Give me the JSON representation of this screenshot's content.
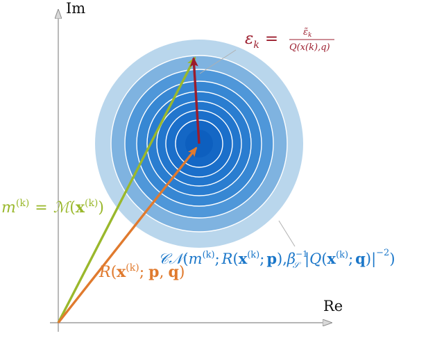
{
  "axes": {
    "x_label": "Re",
    "y_label": "Im"
  },
  "colors": {
    "axis": "#8a8a8a",
    "ring_light": "#b9d6ec",
    "ring_mid": "#7fb3e0",
    "ring_dark": "#1f74cc",
    "core": "#0d5fbf",
    "ring_line": "#ffffff",
    "model_vector": "#9ab82c",
    "residual_vector": "#e07a2e",
    "error_vector": "#9b1c2c",
    "cn_text": "#1b77c9",
    "error_text": "#9b1c2c"
  },
  "labels": {
    "error": {
      "lhs": "ε",
      "lhs_sub": "k",
      "eq": "=",
      "num": "ε̃",
      "num_sub": "k",
      "den": "Q(x(k),q)"
    },
    "model": {
      "m": "m",
      "sup": "(k)",
      "eq": "=",
      "M": "ℳ",
      "arg_open": "(",
      "x": "x",
      "x_sup": "(k)",
      "arg_close": ")"
    },
    "residual": {
      "R": "R",
      "open": "(",
      "x": "x",
      "x_sup": "(k)",
      "sep": ";",
      "p": "p",
      "comma": ",",
      "q": "q",
      "close": ")"
    },
    "distribution": {
      "CN": "𝒞𝒩",
      "open": "(",
      "m": "m",
      "m_sup": "(k)",
      "semi1": ";",
      "R": "R",
      "R_open": "(",
      "x": "x",
      "x_sup": "(k)",
      "semi2": ";",
      "p": "p",
      "R_close": "),",
      "beta": "β",
      "beta_sup": "−1",
      "beta_sub": "𝒮",
      "abs_open": "|",
      "Q": "Q",
      "Q_open": "(",
      "x2": "x",
      "x2_sup": "(k)",
      "semi3": ";",
      "q": "q",
      "Q_close": ")",
      "abs_close": "|",
      "pow": "−2",
      "close": ")"
    }
  }
}
